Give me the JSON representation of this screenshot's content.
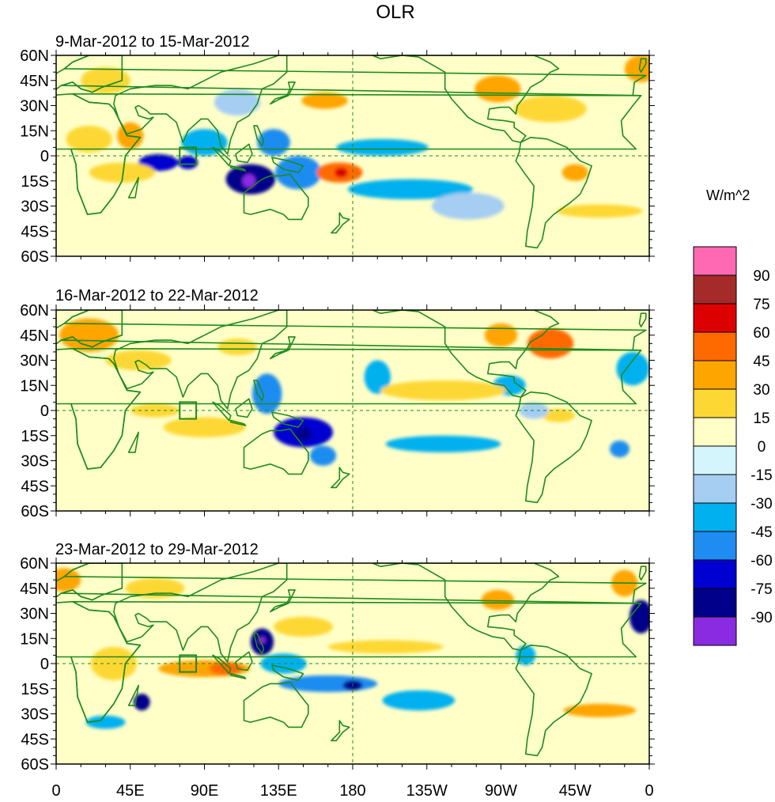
{
  "title": "OLR",
  "colorbar": {
    "units": "W/m^2",
    "levels": [
      "90",
      "75",
      "60",
      "45",
      "30",
      "15",
      "0",
      "-15",
      "-30",
      "-45",
      "-60",
      "-75",
      "-90"
    ],
    "colors": [
      "#ff69b4",
      "#a52a2a",
      "#dd0000",
      "#ff6a00",
      "#ffa500",
      "#fdd835",
      "#ffffc8",
      "#d4f5fb",
      "#a6cef3",
      "#00b0ef",
      "#1e8cf0",
      "#0000d0",
      "#00008b",
      "#8a2be2"
    ]
  },
  "axes": {
    "x_ticks": [
      "0",
      "45E",
      "90E",
      "135E",
      "180",
      "135W",
      "90W",
      "45W",
      "0"
    ],
    "y_ticks": [
      "60N",
      "45N",
      "30N",
      "15N",
      "0",
      "15S",
      "30S",
      "45S",
      "60S"
    ],
    "lon_range": [
      0,
      360
    ],
    "lat_range": [
      -60,
      60
    ]
  },
  "panels": [
    {
      "period": "9-Mar-2012 to 15-Mar-2012",
      "anomalies": [
        {
          "lon": 62,
          "lat": -4,
          "rx": 12,
          "ry": 5,
          "value": -60
        },
        {
          "lon": 80,
          "lat": -4,
          "rx": 6,
          "ry": 4,
          "value": -60
        },
        {
          "lon": 90,
          "lat": 8,
          "rx": 14,
          "ry": 8,
          "value": -30
        },
        {
          "lon": 118,
          "lat": -14,
          "rx": 15,
          "ry": 9,
          "value": -75
        },
        {
          "lon": 117,
          "lat": -15,
          "rx": 4,
          "ry": 4,
          "value": -90
        },
        {
          "lon": 132,
          "lat": 8,
          "rx": 10,
          "ry": 8,
          "value": -45
        },
        {
          "lon": 147,
          "lat": -10,
          "rx": 14,
          "ry": 10,
          "value": -45
        },
        {
          "lon": 172,
          "lat": -10,
          "rx": 14,
          "ry": 6,
          "value": 45
        },
        {
          "lon": 173,
          "lat": -10,
          "rx": 4,
          "ry": 3,
          "value": 60
        },
        {
          "lon": 215,
          "lat": -20,
          "rx": 38,
          "ry": 6,
          "value": -30
        },
        {
          "lon": 198,
          "lat": 5,
          "rx": 28,
          "ry": 5,
          "value": -30
        },
        {
          "lon": 163,
          "lat": 33,
          "rx": 14,
          "ry": 5,
          "value": 30
        },
        {
          "lon": 268,
          "lat": 40,
          "rx": 14,
          "ry": 8,
          "value": 30
        },
        {
          "lon": 300,
          "lat": 28,
          "rx": 22,
          "ry": 8,
          "value": 15
        },
        {
          "lon": 20,
          "lat": 10,
          "rx": 14,
          "ry": 8,
          "value": 15
        },
        {
          "lon": 45,
          "lat": 12,
          "rx": 8,
          "ry": 8,
          "value": 30
        },
        {
          "lon": 40,
          "lat": -10,
          "rx": 20,
          "ry": 6,
          "value": 15
        },
        {
          "lon": 355,
          "lat": 52,
          "rx": 10,
          "ry": 8,
          "value": 30
        },
        {
          "lon": 330,
          "lat": -33,
          "rx": 26,
          "ry": 4,
          "value": 15
        },
        {
          "lon": 315,
          "lat": -10,
          "rx": 8,
          "ry": 5,
          "value": 30
        },
        {
          "lon": 250,
          "lat": -30,
          "rx": 22,
          "ry": 8,
          "value": -15
        },
        {
          "lon": 110,
          "lat": 32,
          "rx": 14,
          "ry": 8,
          "value": -15
        },
        {
          "lon": 30,
          "lat": 45,
          "rx": 15,
          "ry": 8,
          "value": 15
        }
      ]
    },
    {
      "period": "16-Mar-2012 to 22-Mar-2012",
      "anomalies": [
        {
          "lon": 150,
          "lat": -13,
          "rx": 18,
          "ry": 9,
          "value": -60
        },
        {
          "lon": 150,
          "lat": -14,
          "rx": 5,
          "ry": 4,
          "value": -75
        },
        {
          "lon": 128,
          "lat": 10,
          "rx": 9,
          "ry": 12,
          "value": -45
        },
        {
          "lon": 162,
          "lat": -27,
          "rx": 8,
          "ry": 6,
          "value": -45
        },
        {
          "lon": 235,
          "lat": -20,
          "rx": 35,
          "ry": 5,
          "value": -30
        },
        {
          "lon": 342,
          "lat": -23,
          "rx": 6,
          "ry": 5,
          "value": -45
        },
        {
          "lon": 350,
          "lat": 25,
          "rx": 10,
          "ry": 10,
          "value": -30
        },
        {
          "lon": 195,
          "lat": 20,
          "rx": 8,
          "ry": 10,
          "value": -30
        },
        {
          "lon": 275,
          "lat": 15,
          "rx": 10,
          "ry": 6,
          "value": -30
        },
        {
          "lon": 235,
          "lat": 12,
          "rx": 38,
          "ry": 6,
          "value": 15
        },
        {
          "lon": 300,
          "lat": 40,
          "rx": 14,
          "ry": 9,
          "value": 45
        },
        {
          "lon": 270,
          "lat": 45,
          "rx": 10,
          "ry": 7,
          "value": 30
        },
        {
          "lon": 90,
          "lat": -10,
          "rx": 25,
          "ry": 6,
          "value": 15
        },
        {
          "lon": 20,
          "lat": 45,
          "rx": 18,
          "ry": 10,
          "value": 30
        },
        {
          "lon": 50,
          "lat": 30,
          "rx": 20,
          "ry": 6,
          "value": 15
        },
        {
          "lon": 110,
          "lat": 38,
          "rx": 12,
          "ry": 5,
          "value": 15
        },
        {
          "lon": 60,
          "lat": 0,
          "rx": 15,
          "ry": 4,
          "value": 15
        },
        {
          "lon": 305,
          "lat": -3,
          "rx": 10,
          "ry": 4,
          "value": 15
        },
        {
          "lon": 290,
          "lat": 0,
          "rx": 9,
          "ry": 5,
          "value": -15
        }
      ]
    },
    {
      "period": "23-Mar-2012 to 29-Mar-2012",
      "anomalies": [
        {
          "lon": 125,
          "lat": 13,
          "rx": 7,
          "ry": 8,
          "value": -75
        },
        {
          "lon": 125,
          "lat": 14,
          "rx": 2,
          "ry": 2,
          "value": -90
        },
        {
          "lon": 165,
          "lat": -12,
          "rx": 30,
          "ry": 5,
          "value": -45
        },
        {
          "lon": 180,
          "lat": -13,
          "rx": 6,
          "ry": 3,
          "value": -75
        },
        {
          "lon": 138,
          "lat": 0,
          "rx": 14,
          "ry": 6,
          "value": -30
        },
        {
          "lon": 52,
          "lat": -23,
          "rx": 5,
          "ry": 5,
          "value": -75
        },
        {
          "lon": 220,
          "lat": -22,
          "rx": 22,
          "ry": 6,
          "value": -30
        },
        {
          "lon": 355,
          "lat": 28,
          "rx": 7,
          "ry": 10,
          "value": -75
        },
        {
          "lon": 30,
          "lat": -35,
          "rx": 12,
          "ry": 4,
          "value": -30
        },
        {
          "lon": 285,
          "lat": 5,
          "rx": 6,
          "ry": 6,
          "value": -30
        },
        {
          "lon": 90,
          "lat": -3,
          "rx": 28,
          "ry": 5,
          "value": 30
        },
        {
          "lon": 103,
          "lat": -3,
          "rx": 10,
          "ry": 4,
          "value": 45
        },
        {
          "lon": 330,
          "lat": -28,
          "rx": 22,
          "ry": 4,
          "value": 30
        },
        {
          "lon": 268,
          "lat": 38,
          "rx": 10,
          "ry": 6,
          "value": 30
        },
        {
          "lon": 200,
          "lat": 10,
          "rx": 35,
          "ry": 4,
          "value": 15
        },
        {
          "lon": 150,
          "lat": 22,
          "rx": 18,
          "ry": 6,
          "value": 15
        },
        {
          "lon": 5,
          "lat": 50,
          "rx": 10,
          "ry": 7,
          "value": 30
        },
        {
          "lon": 345,
          "lat": 48,
          "rx": 8,
          "ry": 8,
          "value": 30
        },
        {
          "lon": 35,
          "lat": 0,
          "rx": 14,
          "ry": 10,
          "value": 15
        },
        {
          "lon": 60,
          "lat": 45,
          "rx": 18,
          "ry": 6,
          "value": 15
        }
      ]
    }
  ]
}
